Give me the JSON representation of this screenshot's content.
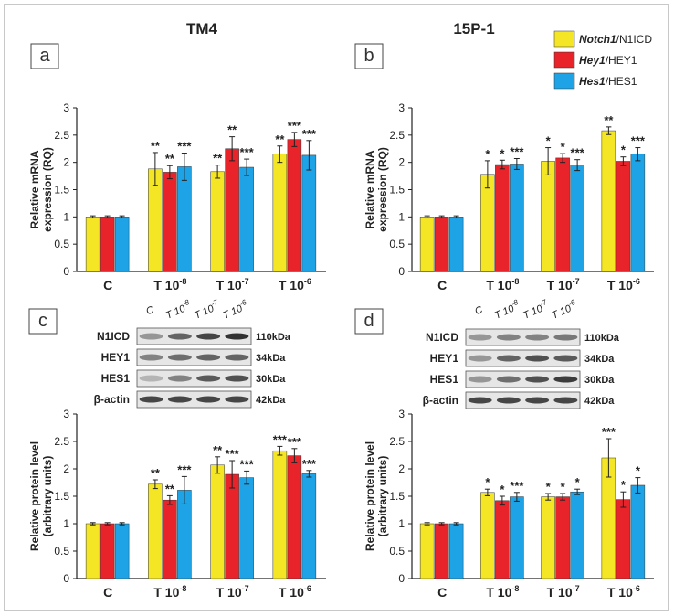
{
  "panels": [
    {
      "letter": "a",
      "title": "TM4",
      "ylabel": [
        "Relative mRNA",
        "expression (RQ)"
      ],
      "blot": null
    },
    {
      "letter": "b",
      "title": "15P-1",
      "ylabel": [
        "Relative mRNA",
        "expression (RQ)"
      ],
      "blot": null
    },
    {
      "letter": "c",
      "title": "",
      "ylabel": [
        "Relative  protein level",
        "(arbitrary units)"
      ],
      "blot": {
        "lanes": [
          "C",
          "T 10-8",
          "T 10-7",
          "T 10-6"
        ],
        "rows": [
          {
            "label": "N1ICD",
            "size": "110kDa",
            "intensity": [
              0.35,
              0.6,
              0.75,
              0.85
            ]
          },
          {
            "label": "HEY1",
            "size": "34kDa",
            "intensity": [
              0.45,
              0.55,
              0.6,
              0.6
            ]
          },
          {
            "label": "HES1",
            "size": "30kDa",
            "intensity": [
              0.2,
              0.45,
              0.65,
              0.7
            ]
          },
          {
            "label": "β-actin",
            "size": "42kDa",
            "intensity": [
              0.75,
              0.75,
              0.75,
              0.75
            ]
          }
        ]
      }
    },
    {
      "letter": "d",
      "title": "",
      "ylabel": [
        "Relative  protein level",
        "(arbitrary units)"
      ],
      "blot": {
        "lanes": [
          "C",
          "T 10-8",
          "T 10-7",
          "T 10-6"
        ],
        "rows": [
          {
            "label": "N1ICD",
            "size": "110kDa",
            "intensity": [
              0.35,
              0.45,
              0.45,
              0.5
            ]
          },
          {
            "label": "HEY1",
            "size": "34kDa",
            "intensity": [
              0.35,
              0.6,
              0.7,
              0.65
            ]
          },
          {
            "label": "HES1",
            "size": "30kDa",
            "intensity": [
              0.35,
              0.55,
              0.7,
              0.8
            ]
          },
          {
            "label": "β-actin",
            "size": "42kDa",
            "intensity": [
              0.75,
              0.75,
              0.75,
              0.75
            ]
          }
        ]
      }
    }
  ],
  "legend": [
    {
      "italic": "Notch1",
      "rest": "/N1ICD",
      "color": "#f5e625"
    },
    {
      "italic": "Hey1",
      "rest": "/HEY1",
      "color": "#e8232a"
    },
    {
      "italic": "Hes1",
      "rest": "/HES1",
      "color": "#1ea3e6"
    }
  ],
  "chart_data": [
    {
      "type": "bar",
      "panel": "a",
      "title": "TM4",
      "categories": [
        "C",
        "T 10-8",
        "T 10-7",
        "T 10-6"
      ],
      "ylabel": "Relative mRNA expression (RQ)",
      "ylim": [
        0,
        3
      ],
      "yticks": [
        "0",
        "0.5",
        "1",
        "1.5",
        "2",
        "2.5",
        "3"
      ],
      "series": [
        {
          "name": "Notch1/N1ICD",
          "values": [
            1.0,
            1.88,
            1.83,
            2.15
          ],
          "errors": [
            0.02,
            0.3,
            0.12,
            0.15
          ],
          "stars": [
            "",
            "**",
            "**",
            "**"
          ]
        },
        {
          "name": "Hey1/HEY1",
          "values": [
            1.0,
            1.82,
            2.25,
            2.42
          ],
          "errors": [
            0.02,
            0.12,
            0.22,
            0.13
          ],
          "stars": [
            "",
            "**",
            "**",
            "***"
          ]
        },
        {
          "name": "Hes1/HES1",
          "values": [
            1.0,
            1.92,
            1.91,
            2.13
          ],
          "errors": [
            0.02,
            0.25,
            0.15,
            0.27
          ],
          "stars": [
            "",
            "***",
            "***",
            "***"
          ]
        }
      ]
    },
    {
      "type": "bar",
      "panel": "b",
      "title": "15P-1",
      "categories": [
        "C",
        "T 10-8",
        "T 10-7",
        "T 10-6"
      ],
      "ylabel": "Relative mRNA expression (RQ)",
      "ylim": [
        0,
        3
      ],
      "yticks": [
        "0",
        "0.5",
        "1",
        "1.5",
        "2",
        "2.5",
        "3"
      ],
      "series": [
        {
          "name": "Notch1/N1ICD",
          "values": [
            1.0,
            1.78,
            2.02,
            2.58
          ],
          "errors": [
            0.02,
            0.25,
            0.25,
            0.07
          ],
          "stars": [
            "",
            "*",
            "*",
            "**"
          ]
        },
        {
          "name": "Hey1/HEY1",
          "values": [
            1.0,
            1.96,
            2.08,
            2.02
          ],
          "errors": [
            0.02,
            0.08,
            0.08,
            0.08
          ],
          "stars": [
            "",
            "*",
            "*",
            "*"
          ]
        },
        {
          "name": "Hes1/HES1",
          "values": [
            1.0,
            1.97,
            1.95,
            2.15
          ],
          "errors": [
            0.02,
            0.1,
            0.1,
            0.12
          ],
          "stars": [
            "",
            "***",
            "***",
            "***"
          ]
        }
      ]
    },
    {
      "type": "bar",
      "panel": "c",
      "title": "",
      "categories": [
        "C",
        "T 10-8",
        "T 10-7",
        "T 10-6"
      ],
      "ylabel": "Relative protein level (arbitrary units)",
      "ylim": [
        0,
        3
      ],
      "yticks": [
        "0",
        "0.5",
        "1",
        "1.5",
        "2",
        "2.5",
        "3"
      ],
      "series": [
        {
          "name": "Notch1/N1ICD",
          "values": [
            1.0,
            1.72,
            2.07,
            2.33
          ],
          "errors": [
            0.02,
            0.08,
            0.15,
            0.08
          ],
          "stars": [
            "",
            "**",
            "**",
            "***"
          ]
        },
        {
          "name": "Hey1/HEY1",
          "values": [
            1.0,
            1.43,
            1.9,
            2.24
          ],
          "errors": [
            0.02,
            0.08,
            0.25,
            0.13
          ],
          "stars": [
            "",
            "**",
            "***",
            "***"
          ]
        },
        {
          "name": "Hes1/HES1",
          "values": [
            1.0,
            1.61,
            1.84,
            1.91
          ],
          "errors": [
            0.02,
            0.25,
            0.12,
            0.06
          ],
          "stars": [
            "",
            "***",
            "***",
            "***"
          ]
        }
      ]
    },
    {
      "type": "bar",
      "panel": "d",
      "title": "",
      "categories": [
        "C",
        "T 10-8",
        "T 10-7",
        "T 10-6"
      ],
      "ylabel": "Relative protein level (arbitrary units)",
      "ylim": [
        0,
        3
      ],
      "yticks": [
        "0",
        "0.5",
        "1",
        "1.5",
        "2",
        "2.5",
        "3"
      ],
      "series": [
        {
          "name": "Notch1/N1ICD",
          "values": [
            1.0,
            1.57,
            1.49,
            2.2
          ],
          "errors": [
            0.02,
            0.06,
            0.06,
            0.35
          ],
          "stars": [
            "",
            "*",
            "*",
            "***"
          ]
        },
        {
          "name": "Hey1/HEY1",
          "values": [
            1.0,
            1.42,
            1.49,
            1.44
          ],
          "errors": [
            0.02,
            0.08,
            0.06,
            0.14
          ],
          "stars": [
            "",
            "*",
            "*",
            "*"
          ]
        },
        {
          "name": "Hes1/HES1",
          "values": [
            1.0,
            1.49,
            1.58,
            1.7
          ],
          "errors": [
            0.02,
            0.08,
            0.05,
            0.14
          ],
          "stars": [
            "",
            "***",
            "*",
            "*"
          ]
        }
      ]
    }
  ]
}
